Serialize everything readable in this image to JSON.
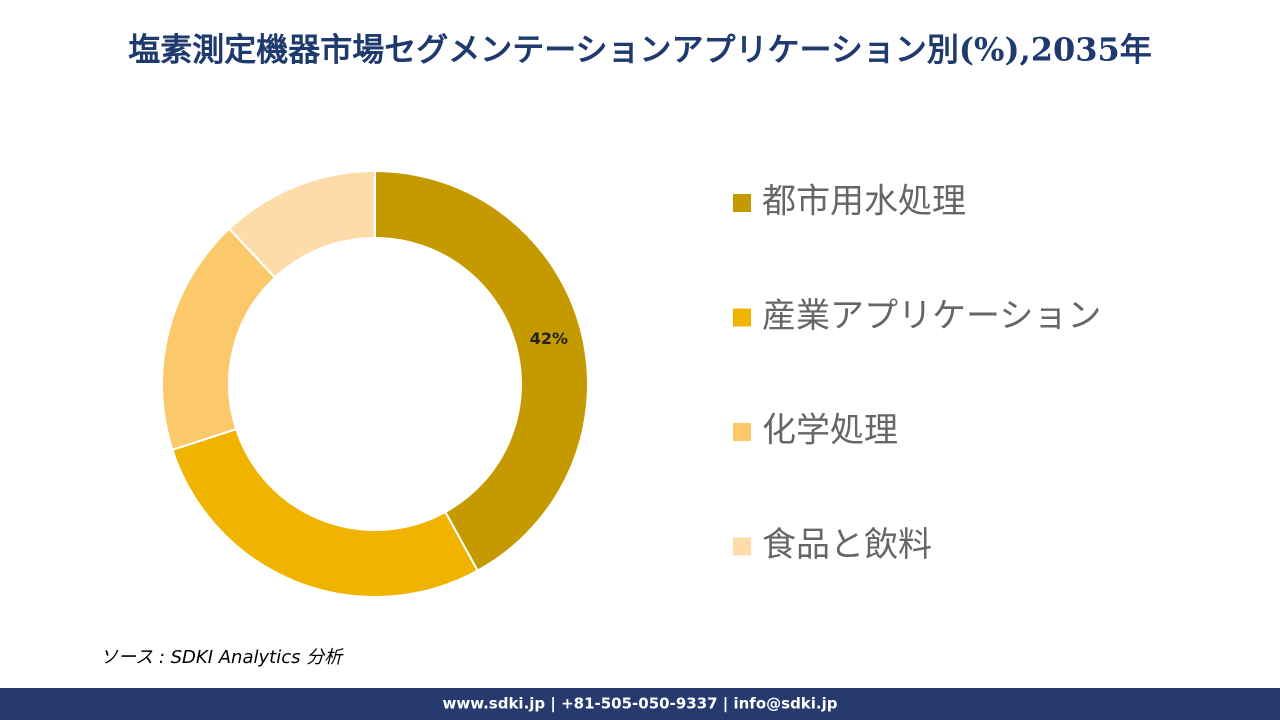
{
  "chart_data": {
    "type": "donut",
    "title": "塩素測定機器市場セグメンテーションアプリケーション別(%),2035年",
    "categories": [
      "都市用水処理",
      "産業アプリケーション",
      "化学処理",
      "食品と飲料"
    ],
    "values": [
      42,
      28,
      18,
      12
    ],
    "value_labels": [
      "42%",
      null,
      null,
      null
    ],
    "colors": [
      "#c49a00",
      "#f0b400",
      "#fcc96a",
      "#fddcaa"
    ],
    "legend": "right"
  },
  "source": "ソース : SDKI Analytics 分析",
  "footer": "www.sdki.jp | +81-505-050-9337 | info@sdki.jp"
}
